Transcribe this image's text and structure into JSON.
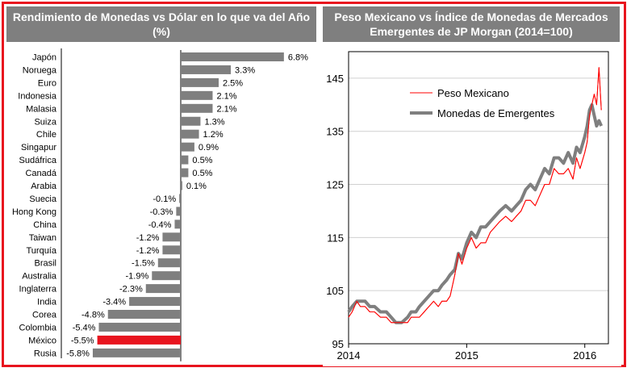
{
  "chart_data": [
    {
      "type": "bar",
      "orientation": "horizontal",
      "title": "Rendimiento de Monedas vs Dólar en lo que va del Año (%)",
      "categories": [
        "Japón",
        "Noruega",
        "Euro",
        "Indonesia",
        "Malasia",
        "Suiza",
        "Chile",
        "Singapur",
        "Sudáfrica",
        "Canadá",
        "Arabia",
        "Suecia",
        "Hong Kong",
        "China",
        "Taiwan",
        "Turquía",
        "Brasil",
        "Australia",
        "Inglaterra",
        "India",
        "Corea",
        "Colombia",
        "México",
        "Rusia"
      ],
      "values": [
        6.8,
        3.3,
        2.5,
        2.1,
        2.1,
        1.3,
        1.2,
        0.9,
        0.5,
        0.5,
        0.1,
        -0.1,
        -0.3,
        -0.4,
        -1.2,
        -1.2,
        -1.5,
        -1.9,
        -2.3,
        -3.4,
        -4.8,
        -5.4,
        -5.5,
        -5.8
      ],
      "labels": [
        "6.8%",
        "3.3%",
        "2.5%",
        "2.1%",
        "2.1%",
        "1.3%",
        "1.2%",
        "0.9%",
        "0.5%",
        "0.5%",
        "0.1%",
        "-0.1%",
        "-0.3%",
        "-0.4%",
        "-1.2%",
        "-1.2%",
        "-1.5%",
        "-1.9%",
        "-2.3%",
        "-3.4%",
        "-4.8%",
        "-5.4%",
        "-5.5%",
        "-5.8%"
      ],
      "highlight": "México",
      "bar_color": "#7f7f7f",
      "highlight_color": "#e8141e",
      "xlim": [
        -6.5,
        8.2
      ]
    },
    {
      "type": "line",
      "title": "Peso Mexicano vs Índice de Monedas de Mercados Emergentes de JP Morgan (2014=100)",
      "xticks": [
        "2014",
        "2015",
        "2016"
      ],
      "xlim": [
        2014.0,
        2016.2
      ],
      "ylim": [
        95,
        150
      ],
      "yticks": [
        95,
        105,
        115,
        125,
        135,
        145
      ],
      "grid": true,
      "legend_position": "top-left",
      "series": [
        {
          "name": "Peso Mexicano",
          "color": "#ff0000",
          "x": [
            2014.0,
            2014.03,
            2014.07,
            2014.1,
            2014.14,
            2014.18,
            2014.22,
            2014.27,
            2014.32,
            2014.36,
            2014.4,
            2014.45,
            2014.5,
            2014.53,
            2014.57,
            2014.6,
            2014.64,
            2014.68,
            2014.72,
            2014.76,
            2014.79,
            2014.83,
            2014.86,
            2014.9,
            2014.93,
            2014.96,
            2015.0,
            2015.04,
            2015.08,
            2015.12,
            2015.16,
            2015.2,
            2015.24,
            2015.28,
            2015.33,
            2015.38,
            2015.42,
            2015.46,
            2015.5,
            2015.54,
            2015.58,
            2015.62,
            2015.66,
            2015.7,
            2015.74,
            2015.78,
            2015.82,
            2015.86,
            2015.9,
            2015.93,
            2015.96,
            2016.0,
            2016.02,
            2016.04,
            2016.06,
            2016.08,
            2016.1,
            2016.12,
            2016.14
          ],
          "y": [
            100,
            101,
            103,
            102,
            102,
            101,
            101,
            100,
            100,
            99,
            99,
            99,
            99,
            100,
            100,
            100,
            101,
            102,
            103,
            102,
            103,
            103,
            104,
            108,
            112,
            110,
            113,
            115,
            113,
            114,
            114,
            116,
            117,
            118,
            119,
            118,
            119,
            120,
            122,
            122,
            121,
            123,
            125,
            125,
            128,
            127,
            127,
            128,
            126,
            130,
            128,
            131,
            133,
            138,
            140,
            142,
            140,
            147,
            139
          ]
        },
        {
          "name": "Monedas de Emergentes",
          "color": "#7f7f7f",
          "x": [
            2014.0,
            2014.03,
            2014.07,
            2014.1,
            2014.14,
            2014.18,
            2014.22,
            2014.27,
            2014.32,
            2014.36,
            2014.4,
            2014.45,
            2014.5,
            2014.53,
            2014.57,
            2014.6,
            2014.64,
            2014.68,
            2014.72,
            2014.76,
            2014.79,
            2014.83,
            2014.86,
            2014.9,
            2014.93,
            2014.96,
            2015.0,
            2015.04,
            2015.08,
            2015.12,
            2015.16,
            2015.2,
            2015.24,
            2015.28,
            2015.33,
            2015.38,
            2015.42,
            2015.46,
            2015.5,
            2015.54,
            2015.58,
            2015.62,
            2015.66,
            2015.7,
            2015.74,
            2015.78,
            2015.82,
            2015.86,
            2015.9,
            2015.93,
            2015.96,
            2016.0,
            2016.02,
            2016.04,
            2016.06,
            2016.08,
            2016.1,
            2016.12,
            2016.14
          ],
          "y": [
            101,
            102,
            103,
            103,
            103,
            102,
            102,
            101,
            101,
            100,
            99,
            99,
            100,
            101,
            101,
            102,
            103,
            104,
            105,
            105,
            106,
            107,
            108,
            109,
            112,
            111,
            114,
            116,
            115,
            117,
            117,
            118,
            119,
            120,
            121,
            120,
            121,
            122,
            124,
            125,
            124,
            126,
            128,
            127,
            130,
            130,
            129,
            131,
            129,
            132,
            131,
            134,
            136,
            139,
            140,
            138,
            136,
            137,
            136
          ]
        }
      ]
    }
  ]
}
